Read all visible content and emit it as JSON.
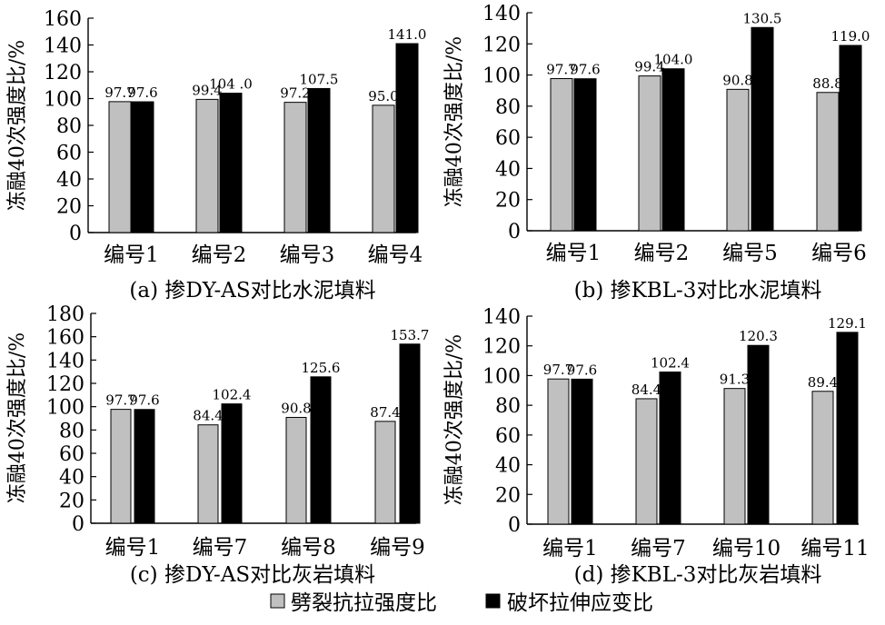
{
  "colors": {
    "series_a": "#c0c0c0",
    "series_b": "#000000",
    "bar_stroke": "#000000"
  },
  "legend": {
    "items": [
      {
        "label": "劈裂抗拉强度比",
        "color": "#c0c0c0"
      },
      {
        "label": "破坏拉伸应变比",
        "color": "#000000"
      }
    ]
  },
  "chart_data": [
    {
      "type": "bar",
      "caption": "(a) 掺DY-AS对比水泥填料",
      "ylabel": "冻融40次强度比/%",
      "ylim": [
        0,
        160
      ],
      "yticks": [
        0,
        20,
        40,
        60,
        80,
        100,
        120,
        140,
        160
      ],
      "categories": [
        "编号1",
        "编号2",
        "编号3",
        "编号4"
      ],
      "series": [
        {
          "name": "劈裂抗拉强度比",
          "values": [
            97.7,
            99.4,
            97.2,
            95.0
          ],
          "labels": [
            "97.7",
            "99.4",
            "97.2",
            "95.0"
          ]
        },
        {
          "name": "破坏拉伸应变比",
          "values": [
            97.6,
            104.0,
            107.5,
            141.0
          ],
          "labels": [
            "97.6",
            "104 .0",
            "107.5",
            "141.0"
          ]
        }
      ]
    },
    {
      "type": "bar",
      "caption": "(b) 掺KBL-3对比水泥填料",
      "ylabel": "冻融40次强度比/%",
      "ylim": [
        0,
        140
      ],
      "yticks": [
        0,
        20,
        40,
        60,
        80,
        100,
        120,
        140
      ],
      "categories": [
        "编号1",
        "编号2",
        "编号5",
        "编号6"
      ],
      "series": [
        {
          "name": "劈裂抗拉强度比",
          "values": [
            97.7,
            99.4,
            90.8,
            88.8
          ],
          "labels": [
            "97.7",
            "99.4",
            "90.8",
            "88.8"
          ]
        },
        {
          "name": "破坏拉伸应变比",
          "values": [
            97.6,
            104.0,
            130.5,
            119.0
          ],
          "labels": [
            "97.6",
            "104.0",
            "130.5",
            "119.0"
          ]
        }
      ]
    },
    {
      "type": "bar",
      "caption": "(c) 掺DY-AS对比灰岩填料",
      "ylabel": "冻融40次强度比/%",
      "ylim": [
        0,
        180
      ],
      "yticks": [
        0,
        20,
        40,
        60,
        80,
        100,
        120,
        140,
        160,
        180
      ],
      "categories": [
        "编号1",
        "编号7",
        "编号8",
        "编号9"
      ],
      "series": [
        {
          "name": "劈裂抗拉强度比",
          "values": [
            97.7,
            84.4,
            90.8,
            87.4
          ],
          "labels": [
            "97.7",
            "84.4",
            "90.8",
            "87.4"
          ]
        },
        {
          "name": "破坏拉伸应变比",
          "values": [
            97.6,
            102.4,
            125.6,
            153.7
          ],
          "labels": [
            "97.6",
            "102.4",
            "125.6",
            "153.7"
          ]
        }
      ]
    },
    {
      "type": "bar",
      "caption": "(d) 掺KBL-3对比灰岩填料",
      "ylabel": "冻融40次强度比/%",
      "ylim": [
        0,
        140
      ],
      "yticks": [
        0,
        20,
        40,
        60,
        80,
        100,
        120,
        140
      ],
      "categories": [
        "编号1",
        "编号7",
        "编号10",
        "编号11"
      ],
      "series": [
        {
          "name": "劈裂抗拉强度比",
          "values": [
            97.7,
            84.4,
            91.3,
            89.4
          ],
          "labels": [
            "97.7",
            "84.4",
            "91.3",
            "89.4"
          ]
        },
        {
          "name": "破坏拉伸应变比",
          "values": [
            97.6,
            102.4,
            120.3,
            129.1
          ],
          "labels": [
            "97.6",
            "102.4",
            "120.3",
            "129.1"
          ]
        }
      ]
    }
  ]
}
